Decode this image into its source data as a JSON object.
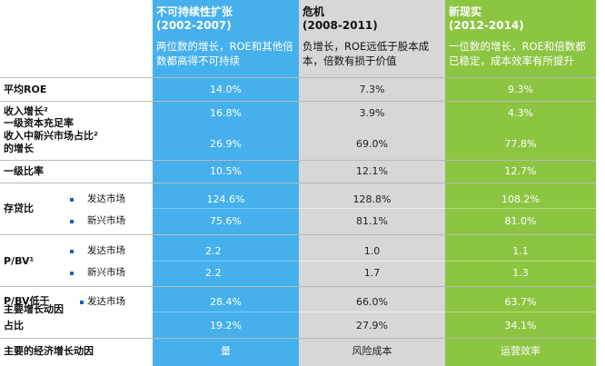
{
  "columns": [
    {
      "title": "不可持续性扩张",
      "period": "(2002-2007)",
      "desc": "两位数的增长，ROE和其他倍数都高得不可持续",
      "color": "#45b0ec"
    },
    {
      "title": "危机",
      "period": "(2008-2011)",
      "desc": "负增长，ROE远低于股本成本，倍数有损于价值",
      "color": "#d7d7d7"
    },
    {
      "title": "新现实",
      "period": "(2012-2014)",
      "desc": "一位数的增长，ROE和倍数都已稳定，成本效率有所提升",
      "color": "#8cc542"
    }
  ],
  "rows": {
    "roe": {
      "label": "平均ROE",
      "values": [
        "14.0%",
        "7.3%",
        "9.3%"
      ]
    },
    "revenue": {
      "label": "收入增长²",
      "values": [
        "16.8%",
        "3.9%",
        "4.3%"
      ]
    },
    "tier1_overlay": {
      "label": "一级资本充足率"
    },
    "em_share": {
      "label": "收入中新兴市场占比²",
      "label2": "的增长",
      "values": [
        "26.9%",
        "69.0%",
        "77.8%"
      ]
    },
    "tier1": {
      "label": "一级比率",
      "values": [
        "10.5%",
        "12.1%",
        "12.7%"
      ]
    },
    "ldr": {
      "label": "存贷比",
      "sub1": "发达市场",
      "sub2": "新兴市场",
      "values1": [
        "124.6%",
        "128.8%",
        "108.2%"
      ],
      "values2": [
        "75.6%",
        "81.1%",
        "81.0%"
      ]
    },
    "pbv": {
      "label": "P/BV¹",
      "sub1": "发达市场",
      "sub2": "新兴市场",
      "values1": [
        "2.2",
        "1.0",
        "1.1"
      ],
      "values2": [
        "2.2",
        "1.7",
        "1.3"
      ]
    },
    "pbv_low": {
      "label": "P/BV低于",
      "label_overlay": "主要增长动因",
      "label2": "占比",
      "sub1": "发达市场",
      "values1": [
        "28.4%",
        "66.0%",
        "63.7%"
      ],
      "values2": [
        "19.2%",
        "27.9%",
        "34.1%"
      ]
    },
    "driver": {
      "label": "主要的经济增长动因",
      "values": [
        "量",
        "风险成本",
        "运营效率"
      ]
    }
  }
}
